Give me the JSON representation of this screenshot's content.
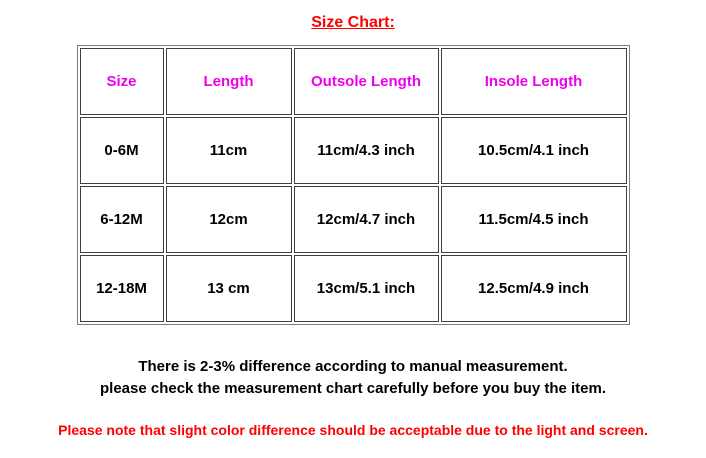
{
  "title": {
    "text": "Size Chart:",
    "color": "#ff0000"
  },
  "size_chart": {
    "header_color": "#ee00ee",
    "border_color": "#3f3f3f",
    "headers": [
      "Size",
      "Length",
      "Outsole Length",
      "Insole Length"
    ],
    "rows": [
      [
        "0-6M",
        "11cm",
        "11cm/4.3 inch",
        "10.5cm/4.1 inch"
      ],
      [
        "6-12M",
        "12cm",
        "12cm/4.7 inch",
        "11.5cm/4.5 inch"
      ],
      [
        "12-18M",
        "13 cm",
        "13cm/5.1 inch",
        "12.5cm/4.9 inch"
      ]
    ]
  },
  "chart_data": {
    "type": "table",
    "title": "Size Chart:",
    "columns": [
      "Size",
      "Length",
      "Outsole Length",
      "Insole Length"
    ],
    "rows": [
      [
        "0-6M",
        "11cm",
        "11cm/4.3 inch",
        "10.5cm/4.1 inch"
      ],
      [
        "6-12M",
        "12cm",
        "12cm/4.7 inch",
        "11.5cm/4.5 inch"
      ],
      [
        "12-18M",
        "13 cm",
        "13cm/5.1 inch",
        "12.5cm/4.9 inch"
      ]
    ]
  },
  "notes": {
    "line1": "There is 2-3% difference according to manual measurement.",
    "line2": "please check the measurement chart carefully before you buy the item."
  },
  "disclaimer": {
    "text": "Please note that slight color difference should be acceptable due to the light and screen.",
    "color": "#ff0000"
  }
}
